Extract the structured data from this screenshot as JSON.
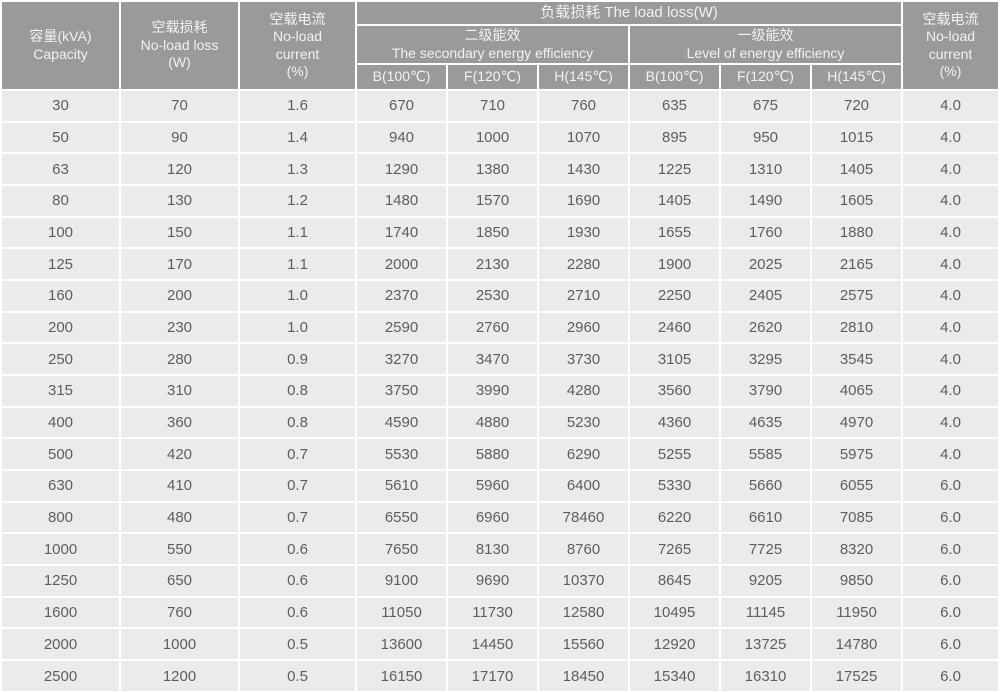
{
  "table": {
    "header": {
      "capacity": [
        "容量(kVA)",
        "Capacity"
      ],
      "no_load_loss": [
        "空载损耗",
        "No-load loss",
        "(W)"
      ],
      "no_load_current_left": [
        "空载电流",
        "No-load",
        "current",
        "(%)"
      ],
      "load_loss_title": "负载损耗 The load loss(W)",
      "secondary_efficiency": [
        "二级能效",
        "The secondary energy efficiency"
      ],
      "primary_efficiency": [
        "一级能效",
        "Level of energy efficiency"
      ],
      "temp_cols": [
        "B(100℃)",
        "F(120℃)",
        "H(145℃)",
        "B(100℃)",
        "F(120℃)",
        "H(145℃)"
      ],
      "no_load_current_right": [
        "空载电流",
        "No-load",
        "current",
        "(%)"
      ]
    },
    "rows": [
      [
        "30",
        "70",
        "1.6",
        "670",
        "710",
        "760",
        "635",
        "675",
        "720",
        "4.0"
      ],
      [
        "50",
        "90",
        "1.4",
        "940",
        "1000",
        "1070",
        "895",
        "950",
        "1015",
        "4.0"
      ],
      [
        "63",
        "120",
        "1.3",
        "1290",
        "1380",
        "1430",
        "1225",
        "1310",
        "1405",
        "4.0"
      ],
      [
        "80",
        "130",
        "1.2",
        "1480",
        "1570",
        "1690",
        "1405",
        "1490",
        "1605",
        "4.0"
      ],
      [
        "100",
        "150",
        "1.1",
        "1740",
        "1850",
        "1930",
        "1655",
        "1760",
        "1880",
        "4.0"
      ],
      [
        "125",
        "170",
        "1.1",
        "2000",
        "2130",
        "2280",
        "1900",
        "2025",
        "2165",
        "4.0"
      ],
      [
        "160",
        "200",
        "1.0",
        "2370",
        "2530",
        "2710",
        "2250",
        "2405",
        "2575",
        "4.0"
      ],
      [
        "200",
        "230",
        "1.0",
        "2590",
        "2760",
        "2960",
        "2460",
        "2620",
        "2810",
        "4.0"
      ],
      [
        "250",
        "280",
        "0.9",
        "3270",
        "3470",
        "3730",
        "3105",
        "3295",
        "3545",
        "4.0"
      ],
      [
        "315",
        "310",
        "0.8",
        "3750",
        "3990",
        "4280",
        "3560",
        "3790",
        "4065",
        "4.0"
      ],
      [
        "400",
        "360",
        "0.8",
        "4590",
        "4880",
        "5230",
        "4360",
        "4635",
        "4970",
        "4.0"
      ],
      [
        "500",
        "420",
        "0.7",
        "5530",
        "5880",
        "6290",
        "5255",
        "5585",
        "5975",
        "4.0"
      ],
      [
        "630",
        "410",
        "0.7",
        "5610",
        "5960",
        "6400",
        "5330",
        "5660",
        "6055",
        "6.0"
      ],
      [
        "800",
        "480",
        "0.7",
        "6550",
        "6960",
        "78460",
        "6220",
        "6610",
        "7085",
        "6.0"
      ],
      [
        "1000",
        "550",
        "0.6",
        "7650",
        "8130",
        "8760",
        "7265",
        "7725",
        "8320",
        "6.0"
      ],
      [
        "1250",
        "650",
        "0.6",
        "9100",
        "9690",
        "10370",
        "8645",
        "9205",
        "9850",
        "6.0"
      ],
      [
        "1600",
        "760",
        "0.6",
        "11050",
        "11730",
        "12580",
        "10495",
        "11145",
        "11950",
        "6.0"
      ],
      [
        "2000",
        "1000",
        "0.5",
        "13600",
        "14450",
        "15560",
        "12920",
        "13725",
        "14780",
        "6.0"
      ],
      [
        "2500",
        "1200",
        "0.5",
        "16150",
        "17170",
        "18450",
        "15340",
        "16310",
        "17525",
        "6.0"
      ]
    ],
    "colors": {
      "header_bg": "#9a9a9a",
      "header_text": "#f2f2f2",
      "cell_bg": "#ebebeb",
      "cell_text": "#5e5e5e",
      "grid": "#ffffff"
    }
  },
  "chart_data": {
    "type": "table",
    "title": "负载损耗 The load loss(W)",
    "columns": [
      "容量(kVA) Capacity",
      "空载损耗 No-load loss (W)",
      "空载电流 No-load current (%)",
      "二级能效 The secondary energy efficiency B(100℃)",
      "二级能效 The secondary energy efficiency F(120℃)",
      "二级能效 The secondary energy efficiency H(145℃)",
      "一级能效 Level of energy efficiency B(100℃)",
      "一级能效 Level of energy efficiency F(120℃)",
      "一级能效 Level of energy efficiency H(145℃)",
      "空载电流 No-load current (%)"
    ],
    "rows": [
      [
        30,
        70,
        1.6,
        670,
        710,
        760,
        635,
        675,
        720,
        4.0
      ],
      [
        50,
        90,
        1.4,
        940,
        1000,
        1070,
        895,
        950,
        1015,
        4.0
      ],
      [
        63,
        120,
        1.3,
        1290,
        1380,
        1430,
        1225,
        1310,
        1405,
        4.0
      ],
      [
        80,
        130,
        1.2,
        1480,
        1570,
        1690,
        1405,
        1490,
        1605,
        4.0
      ],
      [
        100,
        150,
        1.1,
        1740,
        1850,
        1930,
        1655,
        1760,
        1880,
        4.0
      ],
      [
        125,
        170,
        1.1,
        2000,
        2130,
        2280,
        1900,
        2025,
        2165,
        4.0
      ],
      [
        160,
        200,
        1.0,
        2370,
        2530,
        2710,
        2250,
        2405,
        2575,
        4.0
      ],
      [
        200,
        230,
        1.0,
        2590,
        2760,
        2960,
        2460,
        2620,
        2810,
        4.0
      ],
      [
        250,
        280,
        0.9,
        3270,
        3470,
        3730,
        3105,
        3295,
        3545,
        4.0
      ],
      [
        315,
        310,
        0.8,
        3750,
        3990,
        4280,
        3560,
        3790,
        4065,
        4.0
      ],
      [
        400,
        360,
        0.8,
        4590,
        4880,
        5230,
        4360,
        4635,
        4970,
        4.0
      ],
      [
        500,
        420,
        0.7,
        5530,
        5880,
        6290,
        5255,
        5585,
        5975,
        4.0
      ],
      [
        630,
        410,
        0.7,
        5610,
        5960,
        6400,
        5330,
        5660,
        6055,
        6.0
      ],
      [
        800,
        480,
        0.7,
        6550,
        6960,
        78460,
        6220,
        6610,
        7085,
        6.0
      ],
      [
        1000,
        550,
        0.6,
        7650,
        8130,
        8760,
        7265,
        7725,
        8320,
        6.0
      ],
      [
        1250,
        650,
        0.6,
        9100,
        9690,
        10370,
        8645,
        9205,
        9850,
        6.0
      ],
      [
        1600,
        760,
        0.6,
        11050,
        11730,
        12580,
        10495,
        11145,
        11950,
        6.0
      ],
      [
        2000,
        1000,
        0.5,
        13600,
        14450,
        15560,
        12920,
        13725,
        14780,
        6.0
      ],
      [
        2500,
        1200,
        0.5,
        16150,
        17170,
        18450,
        15340,
        16310,
        17525,
        6.0
      ]
    ]
  }
}
